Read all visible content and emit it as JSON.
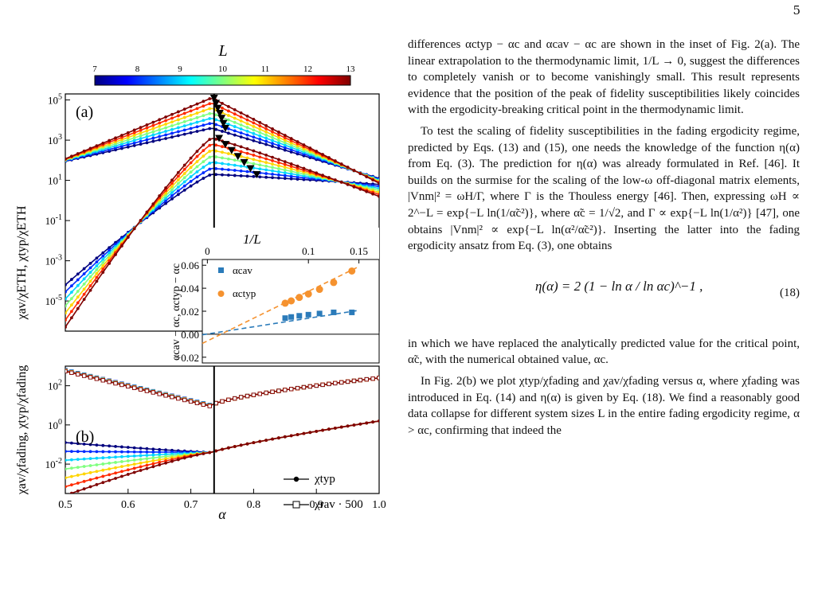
{
  "page_number": "5",
  "figure": {
    "colorbar": {
      "label": "L",
      "ticks": [
        "7",
        "8",
        "9",
        "10",
        "11",
        "12",
        "13"
      ]
    },
    "panel_a": {
      "label": "(a)",
      "y_label": "χav/χETH, χtyp/χETH",
      "y_ticks": [
        "10^5",
        "10^3",
        "10^1",
        "10^-1",
        "10^-3",
        "10^-5"
      ]
    },
    "panel_b": {
      "label": "(b)",
      "y_label": "χav/χfading, χtyp/χfading",
      "y_ticks": [
        "10^2",
        "10^0",
        "10^-2"
      ],
      "x_ticks": [
        "0.5",
        "0.6",
        "0.7",
        "0.8",
        "0.9",
        "1.0"
      ],
      "x_label": "α",
      "legend": [
        "χtyp",
        "χrav · 500"
      ]
    },
    "inset": {
      "x_label": "1/L",
      "x_ticks": [
        "0",
        "0.1",
        "0.15"
      ],
      "y_ticks": [
        "0.06",
        "0.04",
        "0.02",
        "0.00",
        "−0.02"
      ],
      "y_label": "αcav − αc, αctyp − αc",
      "legend": [
        "αcav",
        "αctyp"
      ]
    }
  },
  "chart_data": [
    {
      "type": "line",
      "panel": "a",
      "xlabel": "α",
      "ylabel": "χav/χETH, χtyp/χETH",
      "xlim": [
        0.5,
        1.0
      ],
      "ylim_log10": [
        -6.5,
        5.3
      ],
      "critical_alpha": 0.733,
      "series_count": 7,
      "colormap_range_L": [
        7,
        13
      ],
      "upper_family_peak_log10": [
        3.6,
        3.85,
        4.1,
        4.35,
        4.6,
        4.85,
        5.1
      ],
      "lower_family_peak_log10": [
        1.3,
        1.6,
        1.9,
        2.2,
        2.5,
        2.8,
        3.1
      ]
    },
    {
      "type": "scatter",
      "panel": "inset",
      "xlabel": "1/L",
      "ylabel": "αcav − αc, αctyp − αc",
      "xlim": [
        -0.005,
        0.17
      ],
      "ylim": [
        -0.025,
        0.065
      ],
      "series": [
        {
          "name": "αcav",
          "x": [
            0.077,
            0.083,
            0.091,
            0.1,
            0.111,
            0.125,
            0.143
          ],
          "y": [
            0.014,
            0.015,
            0.016,
            0.017,
            0.018,
            0.019,
            0.019
          ]
        },
        {
          "name": "αctyp",
          "x": [
            0.077,
            0.083,
            0.091,
            0.1,
            0.111,
            0.125,
            0.143
          ],
          "y": [
            0.027,
            0.029,
            0.032,
            0.035,
            0.039,
            0.045,
            0.055
          ]
        }
      ]
    },
    {
      "type": "line",
      "panel": "b",
      "xlabel": "α",
      "ylabel": "χav/χfading, χtyp/χfading",
      "xlim": [
        0.5,
        1.0
      ],
      "ylim_log10": [
        -3.5,
        3.0
      ]
    }
  ],
  "text": {
    "p1": "differences αctyp − αc and αcav − αc are shown in the inset of Fig. 2(a). The linear extrapolation to the thermodynamic limit, 1/L → 0, suggest the differences to completely vanish or to become vanishingly small. This result represents evidence that the position of the peak of fidelity susceptibilities likely coincides with the ergodicity-breaking critical point in the thermodynamic limit.",
    "p2": "To test the scaling of fidelity susceptibilities in the fading ergodicity regime, predicted by Eqs. (13) and (15), one needs the knowledge of the function η(α) from Eq. (3). The prediction for η(α) was already formulated in Ref. [46]. It builds on the surmise for the scaling of the low-ω off-diagonal matrix elements, |Vnm|² = ωH/Γ, where Γ is the Thouless energy [46]. Then, expressing ωH ∝ 2^−L = exp{−L ln(1/α̃c²)}, where α̃c = 1/√2, and Γ ∝ exp{−L ln(1/α²)} [47], one obtains |Vnm|² ∝ exp{−L ln(α²/α̃c²)}. Inserting the latter into the fading ergodicity ansatz from Eq. (3), one obtains",
    "equation": "η(α) = 2 (1 − ln α / ln αc)^−1 ,",
    "equation_number": "(18)",
    "p3": "in which we have replaced the analytically predicted value for the critical point, α̃c, with the numerical obtained value, αc.",
    "p4": "In Fig. 2(b) we plot χtyp/χfading and χav/χfading versus α, where χfading was introduced in Eq. (14) and η(α) is given by Eq. (18). We find a reasonably good data collapse for different system sizes L in the entire fading ergodicity regime, α > αc, confirming that indeed the"
  }
}
